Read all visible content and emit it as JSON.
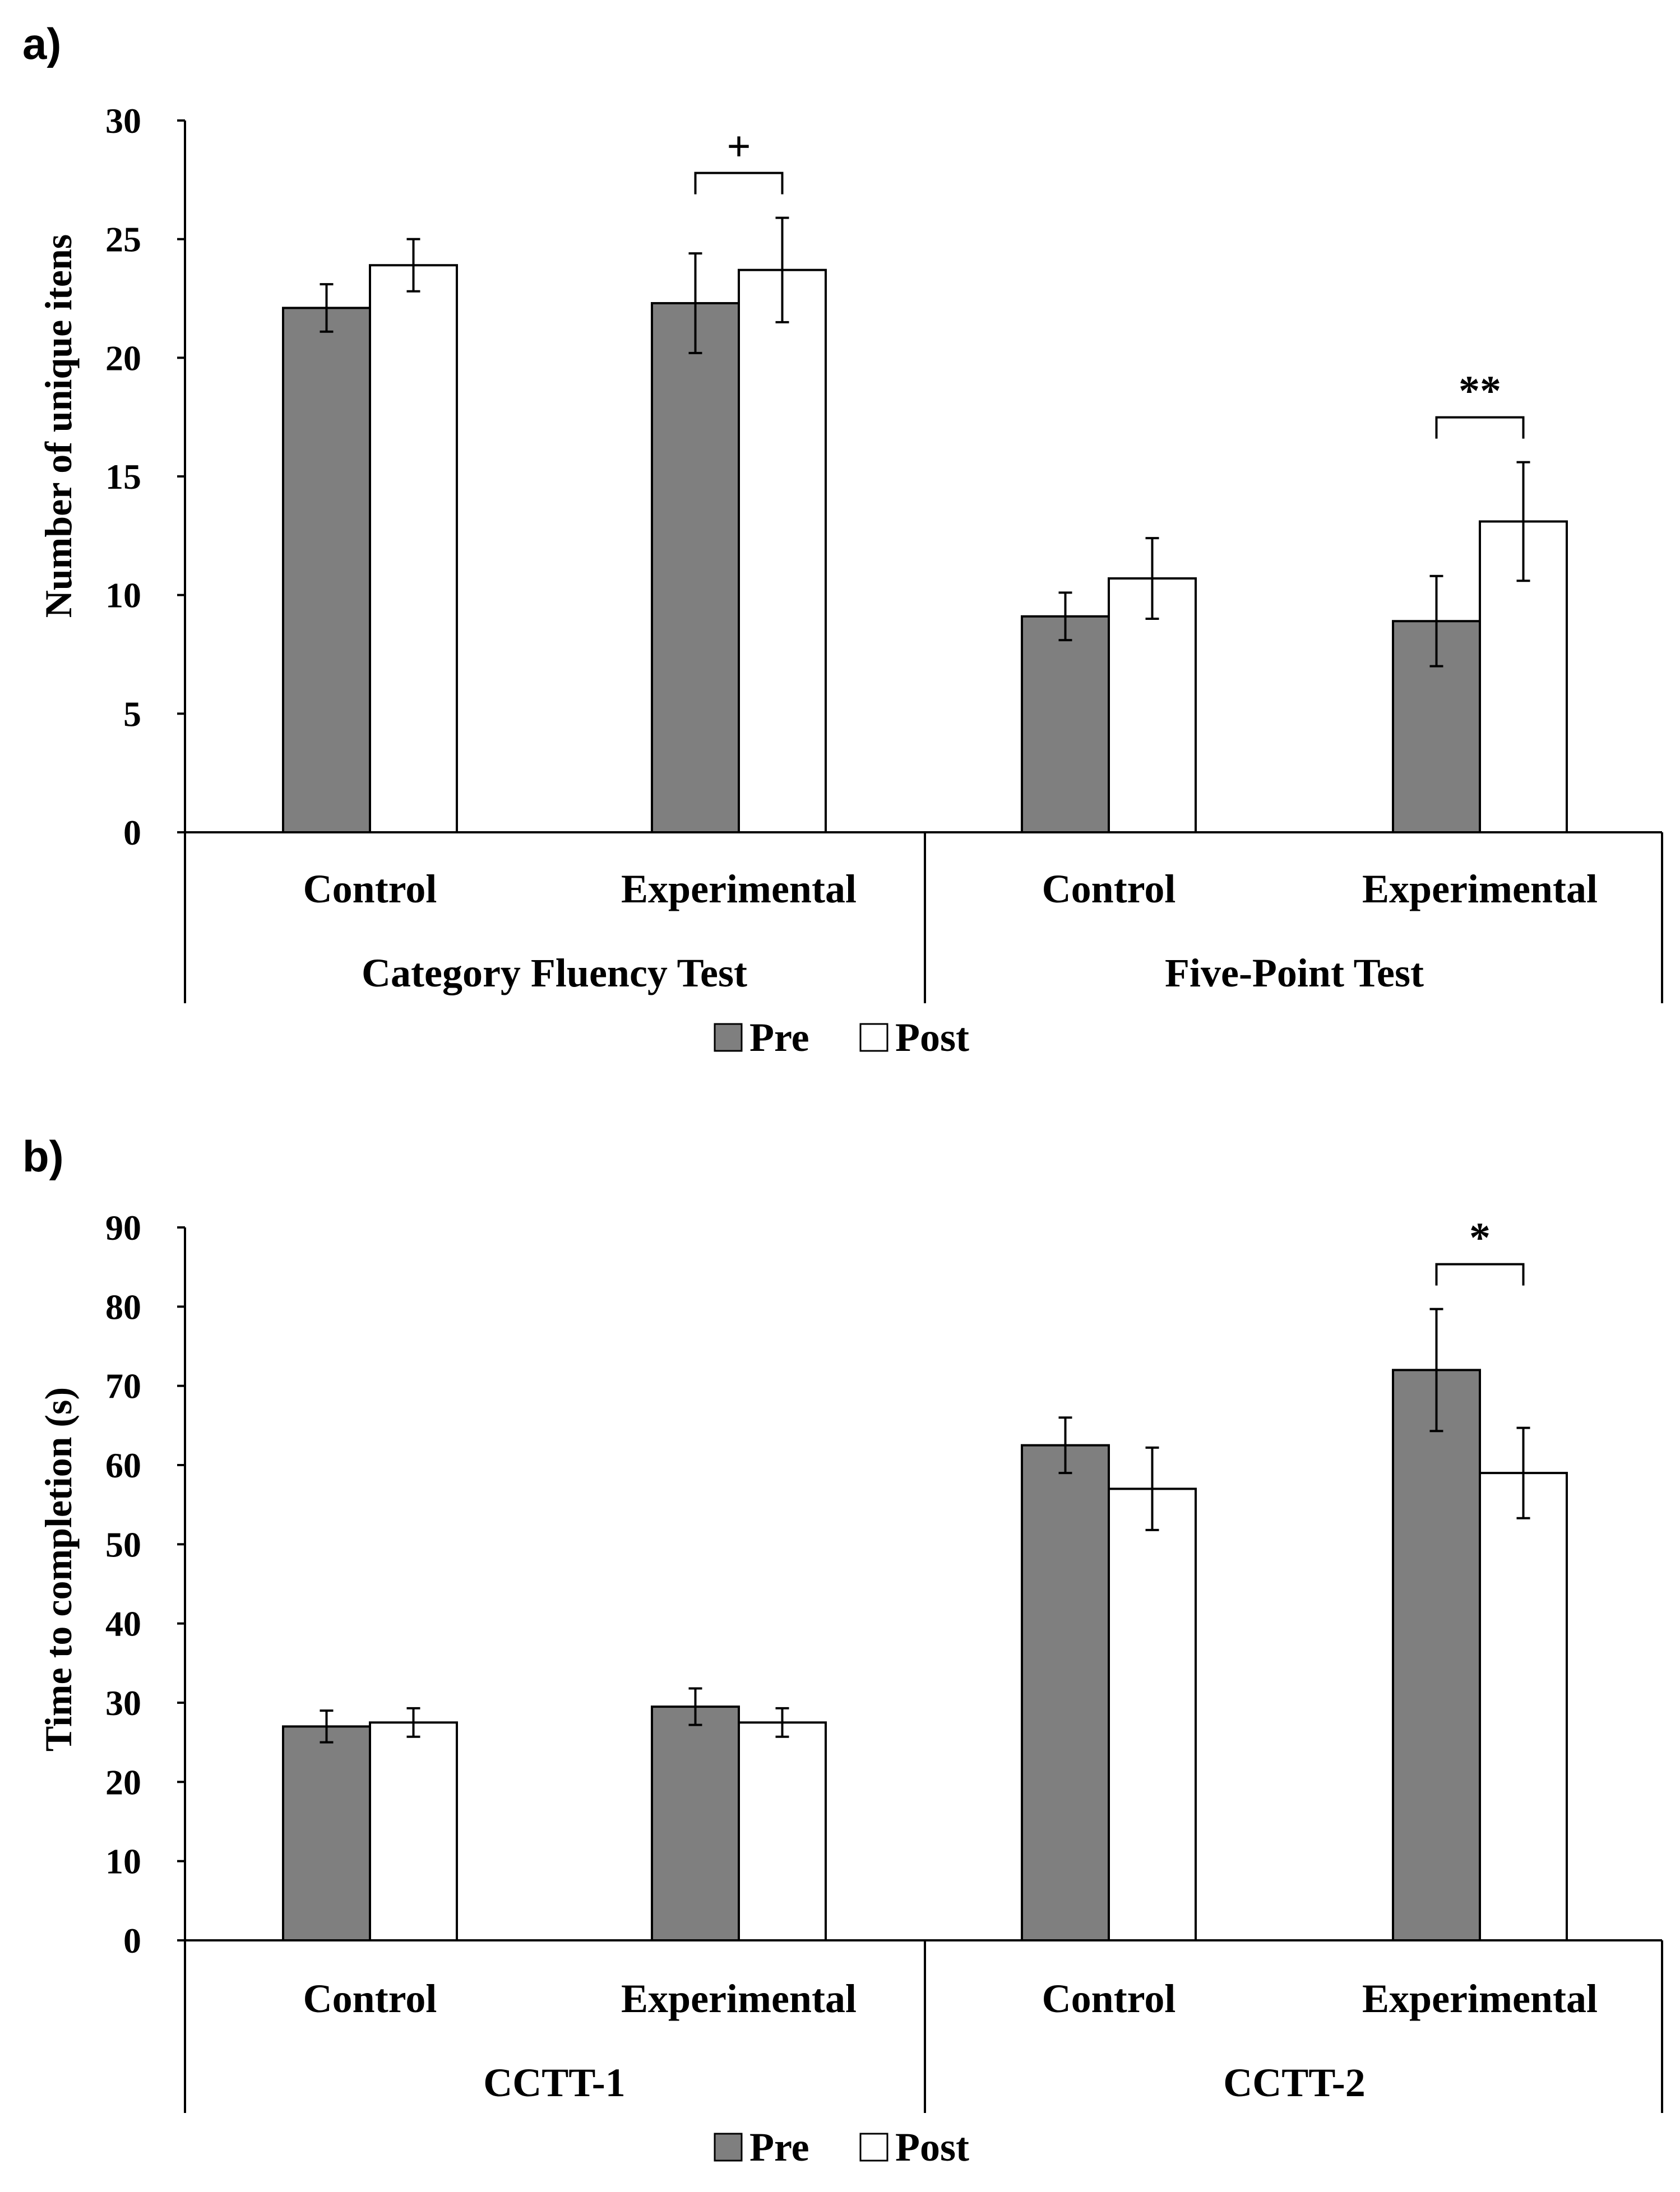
{
  "figure": {
    "chart_data": [
      {
        "panel": "a)",
        "type": "bar",
        "ylabel": "Number of unique itens",
        "xlabel": "",
        "ylim": [
          0,
          30
        ],
        "yticks": [
          0,
          5,
          10,
          15,
          20,
          25,
          30
        ],
        "groups": [
          {
            "label": "Category Fluency Test",
            "categories": [
              "Control",
              "Experimental"
            ]
          },
          {
            "label": "Five-Point Test",
            "categories": [
              "Control",
              "Experimental"
            ]
          }
        ],
        "categories": [
          "Control",
          "Experimental",
          "Control",
          "Experimental"
        ],
        "series": [
          {
            "name": "Pre",
            "color": "#7f7f7f",
            "values": [
              22.1,
              22.3,
              9.1,
              8.9
            ],
            "errors": [
              1.0,
              2.1,
              1.0,
              1.9
            ]
          },
          {
            "name": "Post",
            "color": "#ffffff",
            "values": [
              23.9,
              23.7,
              10.7,
              13.1
            ],
            "errors": [
              1.1,
              2.2,
              1.7,
              2.5
            ]
          }
        ],
        "significance": [
          {
            "category_index": 1,
            "marker": "+"
          },
          {
            "category_index": 3,
            "marker": "**"
          }
        ],
        "legend": [
          "Pre",
          "Post"
        ]
      },
      {
        "panel": "b)",
        "type": "bar",
        "ylabel": "Time to completion (s)",
        "xlabel": "",
        "ylim": [
          0,
          90
        ],
        "yticks": [
          0,
          10,
          20,
          30,
          40,
          50,
          60,
          70,
          80,
          90
        ],
        "groups": [
          {
            "label": "CCTT-1",
            "categories": [
              "Control",
              "Experimental"
            ]
          },
          {
            "label": "CCTT-2",
            "categories": [
              "Control",
              "Experimental"
            ]
          }
        ],
        "categories": [
          "Control",
          "Experimental",
          "Control",
          "Experimental"
        ],
        "series": [
          {
            "name": "Pre",
            "color": "#7f7f7f",
            "values": [
              27.0,
              29.5,
              62.5,
              72.0
            ],
            "errors": [
              2.0,
              2.3,
              3.5,
              7.7
            ]
          },
          {
            "name": "Post",
            "color": "#ffffff",
            "values": [
              27.5,
              27.5,
              57.0,
              59.0
            ],
            "errors": [
              1.8,
              1.8,
              5.2,
              5.7
            ]
          }
        ],
        "significance": [
          {
            "category_index": 3,
            "marker": "*"
          }
        ],
        "legend": [
          "Pre",
          "Post"
        ]
      }
    ]
  }
}
